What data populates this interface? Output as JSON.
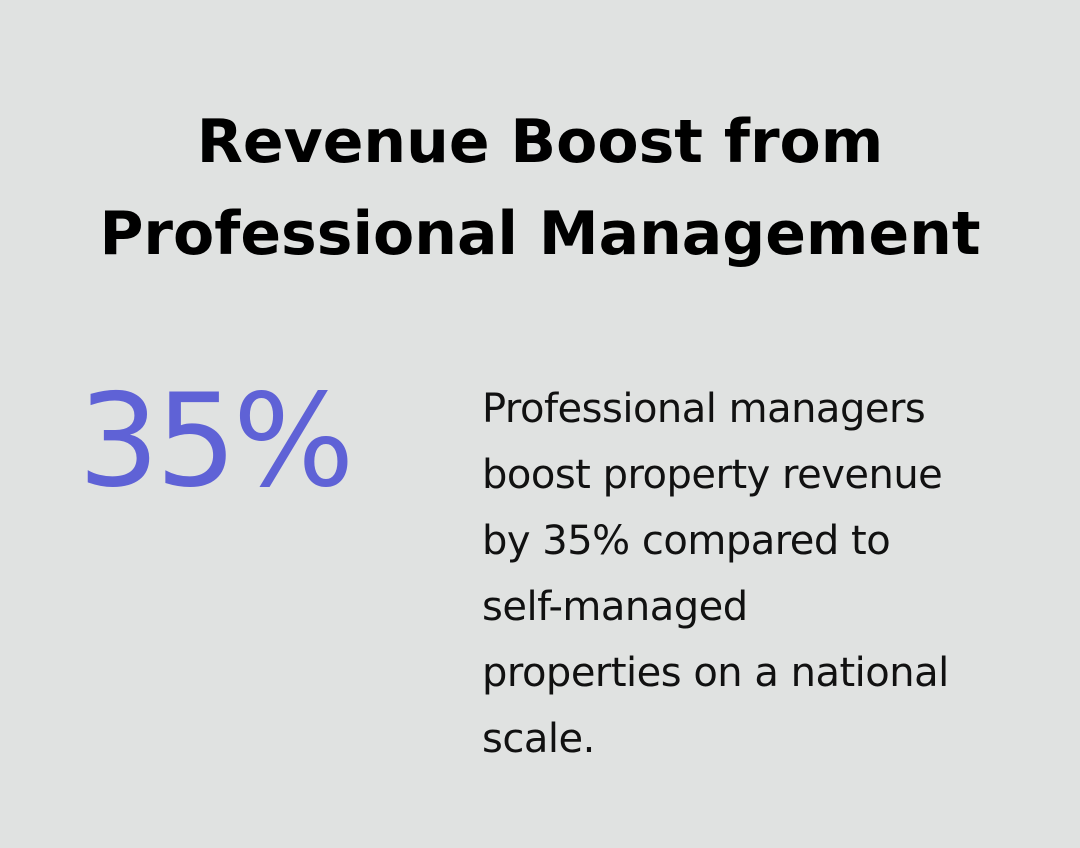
{
  "title": {
    "line1": "Revenue Boost from",
    "line2": "Professional Management"
  },
  "stat": {
    "value": "35%"
  },
  "description": {
    "lines": [
      "Professional managers",
      "boost property revenue",
      "by 35% compared to",
      "self-managed",
      "properties on a national",
      "scale."
    ]
  },
  "colors": {
    "background": "#e0e2e1",
    "accent": "#5f62d6",
    "text": "#000000"
  }
}
